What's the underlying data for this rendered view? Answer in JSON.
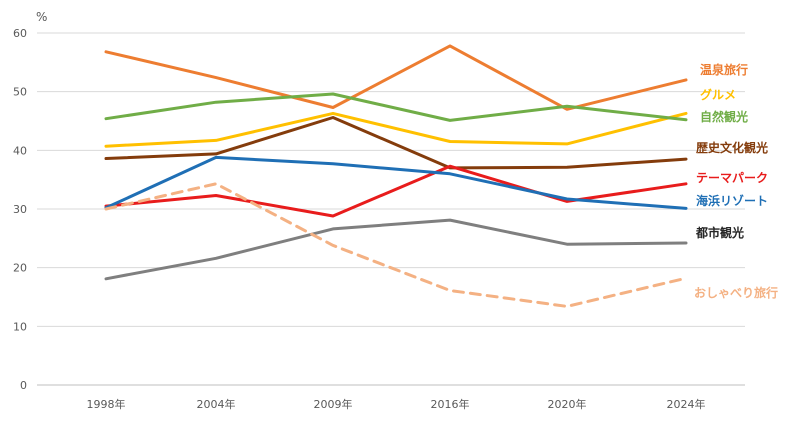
{
  "chart_data": {
    "type": "line",
    "ylabel": "%",
    "ylim": [
      0,
      60
    ],
    "yticks": [
      "0",
      "10",
      "20",
      "30",
      "40",
      "50",
      "60"
    ],
    "grid": true,
    "categories": [
      "1998年",
      "2004年",
      "2009年",
      "2016年",
      "2020年",
      "2024年"
    ],
    "series": [
      {
        "name": "温泉旅行",
        "color": "#ED7D31",
        "dashed": false,
        "values": [
          56.8,
          52.4,
          47.3,
          57.8,
          47.0,
          52.0
        ]
      },
      {
        "name": "グルメ",
        "color": "#FFC000",
        "dashed": false,
        "values": [
          40.7,
          41.7,
          46.3,
          41.5,
          41.1,
          46.3
        ]
      },
      {
        "name": "自然観光",
        "color": "#70AD47",
        "dashed": false,
        "values": [
          45.4,
          48.2,
          49.6,
          45.1,
          47.5,
          45.2
        ]
      },
      {
        "name": "歴史文化観光",
        "color": "#843C0C",
        "dashed": false,
        "values": [
          38.6,
          39.4,
          45.6,
          37.0,
          37.1,
          38.5
        ]
      },
      {
        "name": "テーマパーク",
        "color": "#E81C1C",
        "dashed": false,
        "values": [
          30.5,
          32.3,
          28.8,
          37.3,
          31.3,
          34.3
        ]
      },
      {
        "name": "海浜リゾート",
        "color": "#1F6FB5",
        "dashed": false,
        "values": [
          30.2,
          38.8,
          37.7,
          36.0,
          31.7,
          30.1
        ]
      },
      {
        "name": "都市観光",
        "color": "#7F7F7F",
        "dashed": false,
        "values": [
          18.1,
          21.6,
          26.6,
          28.1,
          24.0,
          24.2
        ]
      },
      {
        "name": "おしゃべり旅行",
        "color": "#F4B183",
        "dashed": true,
        "values": [
          30.0,
          34.3,
          23.8,
          16.1,
          13.4,
          18.2
        ]
      }
    ]
  }
}
